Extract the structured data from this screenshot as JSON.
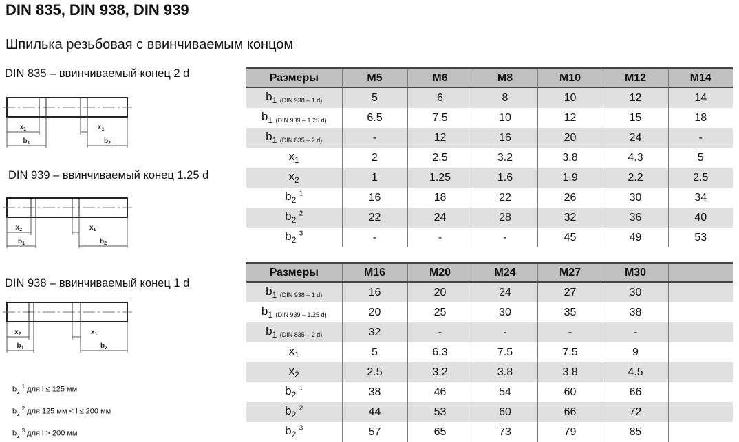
{
  "title": "DIN 835, DIN 938, DIN 939",
  "subtitle": "Шпилька резьбовая с ввинчиваемым концом",
  "drawings": [
    {
      "caption": "DIN 835 – ввинчиваемый конец 2 d",
      "dims": {
        "left_x": "x1",
        "right_x": "x1",
        "left_b": "b1",
        "right_b": "b2"
      }
    },
    {
      "caption": "DIN 939 – ввинчиваемый конец 1.25 d",
      "dims": {
        "left_x": "x2",
        "right_x": "x1",
        "left_b": "b1",
        "right_b": "b2"
      }
    },
    {
      "caption": "DIN 938 – ввинчиваемый конец 1 d",
      "dims": {
        "left_x": "x2",
        "right_x": "x1",
        "left_b": "b1",
        "right_b": "b2"
      }
    }
  ],
  "notes": [
    {
      "base": "b",
      "sub": "2",
      "sup": "1",
      "text": "для l ≤ 125 мм"
    },
    {
      "base": "b",
      "sub": "2",
      "sup": "2",
      "text": "для 125 мм < l ≤ 200 мм"
    },
    {
      "base": "b",
      "sub": "2",
      "sup": "3",
      "text": "для l > 200 мм"
    }
  ],
  "row_labels": [
    {
      "base": "b",
      "sub": "1",
      "note": "(DIN 938 – 1 d)",
      "sup": ""
    },
    {
      "base": "b",
      "sub": "1",
      "note": "(DIN 939 – 1.25 d)",
      "sup": ""
    },
    {
      "base": "b",
      "sub": "1",
      "note": "(DIN 835 – 2 d)",
      "sup": ""
    },
    {
      "base": "x",
      "sub": "1",
      "note": "",
      "sup": ""
    },
    {
      "base": "x",
      "sub": "2",
      "note": "",
      "sup": ""
    },
    {
      "base": "b",
      "sub": "2",
      "note": "",
      "sup": "1"
    },
    {
      "base": "b",
      "sub": "2",
      "note": "",
      "sup": "2"
    },
    {
      "base": "b",
      "sub": "2",
      "note": "",
      "sup": "3"
    }
  ],
  "tables": [
    {
      "header": [
        "Размеры",
        "M5",
        "M6",
        "M8",
        "M10",
        "M12",
        "M14"
      ],
      "rows": [
        [
          "5",
          "6",
          "8",
          "10",
          "12",
          "14"
        ],
        [
          "6.5",
          "7.5",
          "10",
          "12",
          "15",
          "18"
        ],
        [
          "-",
          "12",
          "16",
          "20",
          "24",
          "-"
        ],
        [
          "2",
          "2.5",
          "3.2",
          "3.8",
          "4.3",
          "5"
        ],
        [
          "1",
          "1.25",
          "1.6",
          "1.9",
          "2.2",
          "2.5"
        ],
        [
          "16",
          "18",
          "22",
          "26",
          "30",
          "34"
        ],
        [
          "22",
          "24",
          "28",
          "32",
          "36",
          "40"
        ],
        [
          "-",
          "-",
          "-",
          "45",
          "49",
          "53"
        ]
      ]
    },
    {
      "header": [
        "Размеры",
        "M16",
        "M20",
        "M24",
        "M27",
        "M30",
        ""
      ],
      "rows": [
        [
          "16",
          "20",
          "24",
          "27",
          "30",
          ""
        ],
        [
          "20",
          "25",
          "30",
          "35",
          "38",
          ""
        ],
        [
          "32",
          "-",
          "-",
          "-",
          "-",
          ""
        ],
        [
          "5",
          "6.3",
          "7.5",
          "7.5",
          "9",
          ""
        ],
        [
          "2.5",
          "3.2",
          "3.8",
          "3.8",
          "4.5",
          ""
        ],
        [
          "38",
          "46",
          "54",
          "60",
          "66",
          ""
        ],
        [
          "44",
          "53",
          "60",
          "66",
          "72",
          ""
        ],
        [
          "57",
          "65",
          "73",
          "79",
          "85",
          ""
        ]
      ]
    }
  ],
  "colors": {
    "header_bg": "#c0c0c0",
    "stripe_bg": "#e0e0e0"
  }
}
